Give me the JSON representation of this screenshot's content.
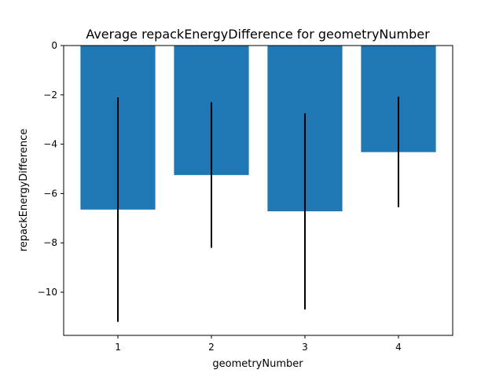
{
  "chart_data": {
    "type": "bar",
    "title": "Average repackEnergyDifference for geometryNumber",
    "xlabel": "geometryNumber",
    "ylabel": "repackEnergyDifference",
    "categories": [
      "1",
      "2",
      "3",
      "4"
    ],
    "values": [
      -6.65,
      -5.25,
      -6.72,
      -4.32
    ],
    "error_low": [
      -11.2,
      -8.2,
      -10.7,
      -6.55
    ],
    "error_high": [
      -2.1,
      -2.3,
      -2.75,
      -2.08
    ],
    "ylim": [
      -11.75,
      0
    ],
    "yticks": [
      0,
      -2,
      -4,
      -6,
      -8,
      -10
    ],
    "ytick_labels": [
      "0",
      "−2",
      "−4",
      "−6",
      "−8",
      "−10"
    ],
    "grid": false,
    "bar_color": "#1f77b4",
    "error_color": "#000000"
  }
}
